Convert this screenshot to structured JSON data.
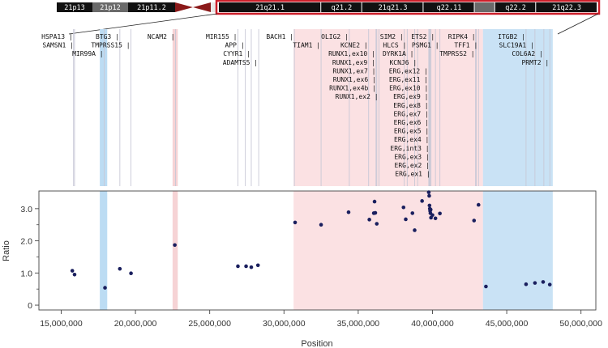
{
  "ideogram": {
    "p_bands": [
      {
        "label": "21p13",
        "shade": "dark"
      },
      {
        "label": "21p12",
        "shade": "light"
      },
      {
        "label": "21p11.2",
        "shade": "dark"
      }
    ],
    "q_bands": [
      {
        "label": "21q21.1",
        "shade": "dark",
        "w": 10
      },
      {
        "label": "q21.2",
        "shade": "dark",
        "w": 4
      },
      {
        "label": "21q21.3",
        "shade": "dark",
        "w": 6
      },
      {
        "label": "q22.11",
        "shade": "dark",
        "w": 5
      },
      {
        "label": "",
        "shade": "light",
        "w": 2
      },
      {
        "label": "q22.2",
        "shade": "dark",
        "w": 4
      },
      {
        "label": "21q22.3",
        "shade": "dark",
        "w": 6
      }
    ],
    "colors": {
      "dark": "#111111",
      "light": "#6a6a6a",
      "centromere": "#8b1a1a",
      "highlight": "#cc1f2a"
    }
  },
  "genes": [
    {
      "name": "HSPA13",
      "pos": 15830000,
      "row": 0
    },
    {
      "name": "SAMSN1",
      "pos": 15900000,
      "row": 1
    },
    {
      "name": "MIR99A",
      "pos": 17900000,
      "row": 2
    },
    {
      "name": "BTG3",
      "pos": 18950000,
      "row": 0
    },
    {
      "name": "TMPRSS15",
      "pos": 19700000,
      "row": 1
    },
    {
      "name": "NCAM2",
      "pos": 22700000,
      "row": 0
    },
    {
      "name": "MIR155",
      "pos": 26900000,
      "row": 0
    },
    {
      "name": "APP",
      "pos": 27400000,
      "row": 1
    },
    {
      "name": "CYYR1",
      "pos": 27800000,
      "row": 2
    },
    {
      "name": "ADAMTS5",
      "pos": 28300000,
      "row": 3
    },
    {
      "name": "BACH1",
      "pos": 30700000,
      "row": 0
    },
    {
      "name": "TIAM1",
      "pos": 32500000,
      "row": 1
    },
    {
      "name": "OLIG2",
      "pos": 34400000,
      "row": 0
    },
    {
      "name": "KCNE2",
      "pos": 35700000,
      "row": 1
    },
    {
      "name": "RUNX1,ex10",
      "pos": 36200000,
      "row": 2
    },
    {
      "name": "RUNX1,ex9",
      "pos": 36200000,
      "row": 3
    },
    {
      "name": "RUNX1,ex7",
      "pos": 36230000,
      "row": 4
    },
    {
      "name": "RUNX1,ex6",
      "pos": 36250000,
      "row": 5
    },
    {
      "name": "RUNX1,ex4b",
      "pos": 36260000,
      "row": 6
    },
    {
      "name": "RUNX1,ex2",
      "pos": 36400000,
      "row": 7
    },
    {
      "name": "SIM2",
      "pos": 38100000,
      "row": 0
    },
    {
      "name": "HLCS",
      "pos": 38300000,
      "row": 1
    },
    {
      "name": "DYRK1A",
      "pos": 38800000,
      "row": 2
    },
    {
      "name": "KCNJ6",
      "pos": 39000000,
      "row": 3
    },
    {
      "name": "ERG,ex12",
      "pos": 39750000,
      "row": 4
    },
    {
      "name": "ERG,ex11",
      "pos": 39760000,
      "row": 5
    },
    {
      "name": "ERG,ex10",
      "pos": 39770000,
      "row": 6
    },
    {
      "name": "ERG,ex9",
      "pos": 39780000,
      "row": 7
    },
    {
      "name": "ERG,ex8",
      "pos": 39790000,
      "row": 8
    },
    {
      "name": "ERG,ex7",
      "pos": 39800000,
      "row": 9
    },
    {
      "name": "ERG,ex6",
      "pos": 39810000,
      "row": 10
    },
    {
      "name": "ERG,ex5",
      "pos": 39820000,
      "row": 11
    },
    {
      "name": "ERG,ex4",
      "pos": 39830000,
      "row": 12
    },
    {
      "name": "ERG,int3",
      "pos": 39840000,
      "row": 13
    },
    {
      "name": "ERG,ex3",
      "pos": 39850000,
      "row": 14
    },
    {
      "name": "ERG,ex2",
      "pos": 39860000,
      "row": 15
    },
    {
      "name": "ERG,ex1",
      "pos": 39900000,
      "row": 16
    },
    {
      "name": "ETS2",
      "pos": 40200000,
      "row": 0
    },
    {
      "name": "PSMG1",
      "pos": 40500000,
      "row": 1
    },
    {
      "name": "TMPRSS2",
      "pos": 42900000,
      "row": 2
    },
    {
      "name": "RIPK4",
      "pos": 42950000,
      "row": 0
    },
    {
      "name": "TFF1",
      "pos": 43100000,
      "row": 1
    },
    {
      "name": "ITGB2",
      "pos": 46300000,
      "row": 0
    },
    {
      "name": "SLC19A1",
      "pos": 46900000,
      "row": 1
    },
    {
      "name": "COL6A2",
      "pos": 47500000,
      "row": 2
    },
    {
      "name": "PRMT2",
      "pos": 47900000,
      "row": 3
    }
  ],
  "chart_data": {
    "type": "scatter",
    "title": "",
    "xlabel": "Position",
    "ylabel": "Ratio",
    "xlim": [
      13500000,
      51000000
    ],
    "ylim": [
      -0.15,
      3.55
    ],
    "xticks": [
      15000000,
      20000000,
      25000000,
      30000000,
      35000000,
      40000000,
      45000000,
      50000000
    ],
    "xtick_labels": [
      "15,000,000",
      "20,000,000",
      "25,000,000",
      "30,000,000",
      "35,000,000",
      "40,000,000",
      "45,000,000",
      "50,000,000"
    ],
    "yticks": [
      0,
      1,
      2,
      3
    ],
    "ytick_labels": [
      "0",
      "1.0",
      "2.0",
      "3.0"
    ],
    "grid": false,
    "point_color": "#1a1f5e",
    "regions": [
      {
        "start": 17600000,
        "end": 18100000,
        "color": "#bcdcf3"
      },
      {
        "start": 22500000,
        "end": 22850000,
        "color": "#f6d3d5"
      },
      {
        "start": 30650000,
        "end": 43400000,
        "color": "#fbe1e3"
      },
      {
        "start": 43400000,
        "end": 48100000,
        "color": "#c9e2f5"
      }
    ],
    "points": [
      {
        "x": 15750000,
        "y": 1.07
      },
      {
        "x": 15900000,
        "y": 0.95
      },
      {
        "x": 17950000,
        "y": 0.54
      },
      {
        "x": 18950000,
        "y": 1.13
      },
      {
        "x": 19700000,
        "y": 0.99
      },
      {
        "x": 22650000,
        "y": 1.87
      },
      {
        "x": 26900000,
        "y": 1.21
      },
      {
        "x": 27450000,
        "y": 1.21
      },
      {
        "x": 27800000,
        "y": 1.18
      },
      {
        "x": 28250000,
        "y": 1.24
      },
      {
        "x": 30750000,
        "y": 2.57
      },
      {
        "x": 32500000,
        "y": 2.5
      },
      {
        "x": 34350000,
        "y": 2.89
      },
      {
        "x": 35750000,
        "y": 2.66
      },
      {
        "x": 36050000,
        "y": 2.86
      },
      {
        "x": 36150000,
        "y": 2.87
      },
      {
        "x": 36100000,
        "y": 3.22
      },
      {
        "x": 36250000,
        "y": 2.53
      },
      {
        "x": 38050000,
        "y": 3.04
      },
      {
        "x": 38200000,
        "y": 2.67
      },
      {
        "x": 38650000,
        "y": 2.86
      },
      {
        "x": 38800000,
        "y": 2.33
      },
      {
        "x": 39300000,
        "y": 3.24
      },
      {
        "x": 39750000,
        "y": 3.51
      },
      {
        "x": 39780000,
        "y": 3.4
      },
      {
        "x": 39800000,
        "y": 3.1
      },
      {
        "x": 39820000,
        "y": 3.0
      },
      {
        "x": 39840000,
        "y": 2.93
      },
      {
        "x": 39860000,
        "y": 2.86
      },
      {
        "x": 39880000,
        "y": 2.97
      },
      {
        "x": 39900000,
        "y": 2.72
      },
      {
        "x": 40000000,
        "y": 2.8
      },
      {
        "x": 40200000,
        "y": 2.7
      },
      {
        "x": 40500000,
        "y": 2.85
      },
      {
        "x": 42800000,
        "y": 2.63
      },
      {
        "x": 43100000,
        "y": 3.12
      },
      {
        "x": 43600000,
        "y": 0.58
      },
      {
        "x": 46300000,
        "y": 0.65
      },
      {
        "x": 46900000,
        "y": 0.69
      },
      {
        "x": 47450000,
        "y": 0.72
      },
      {
        "x": 47900000,
        "y": 0.64
      }
    ]
  }
}
